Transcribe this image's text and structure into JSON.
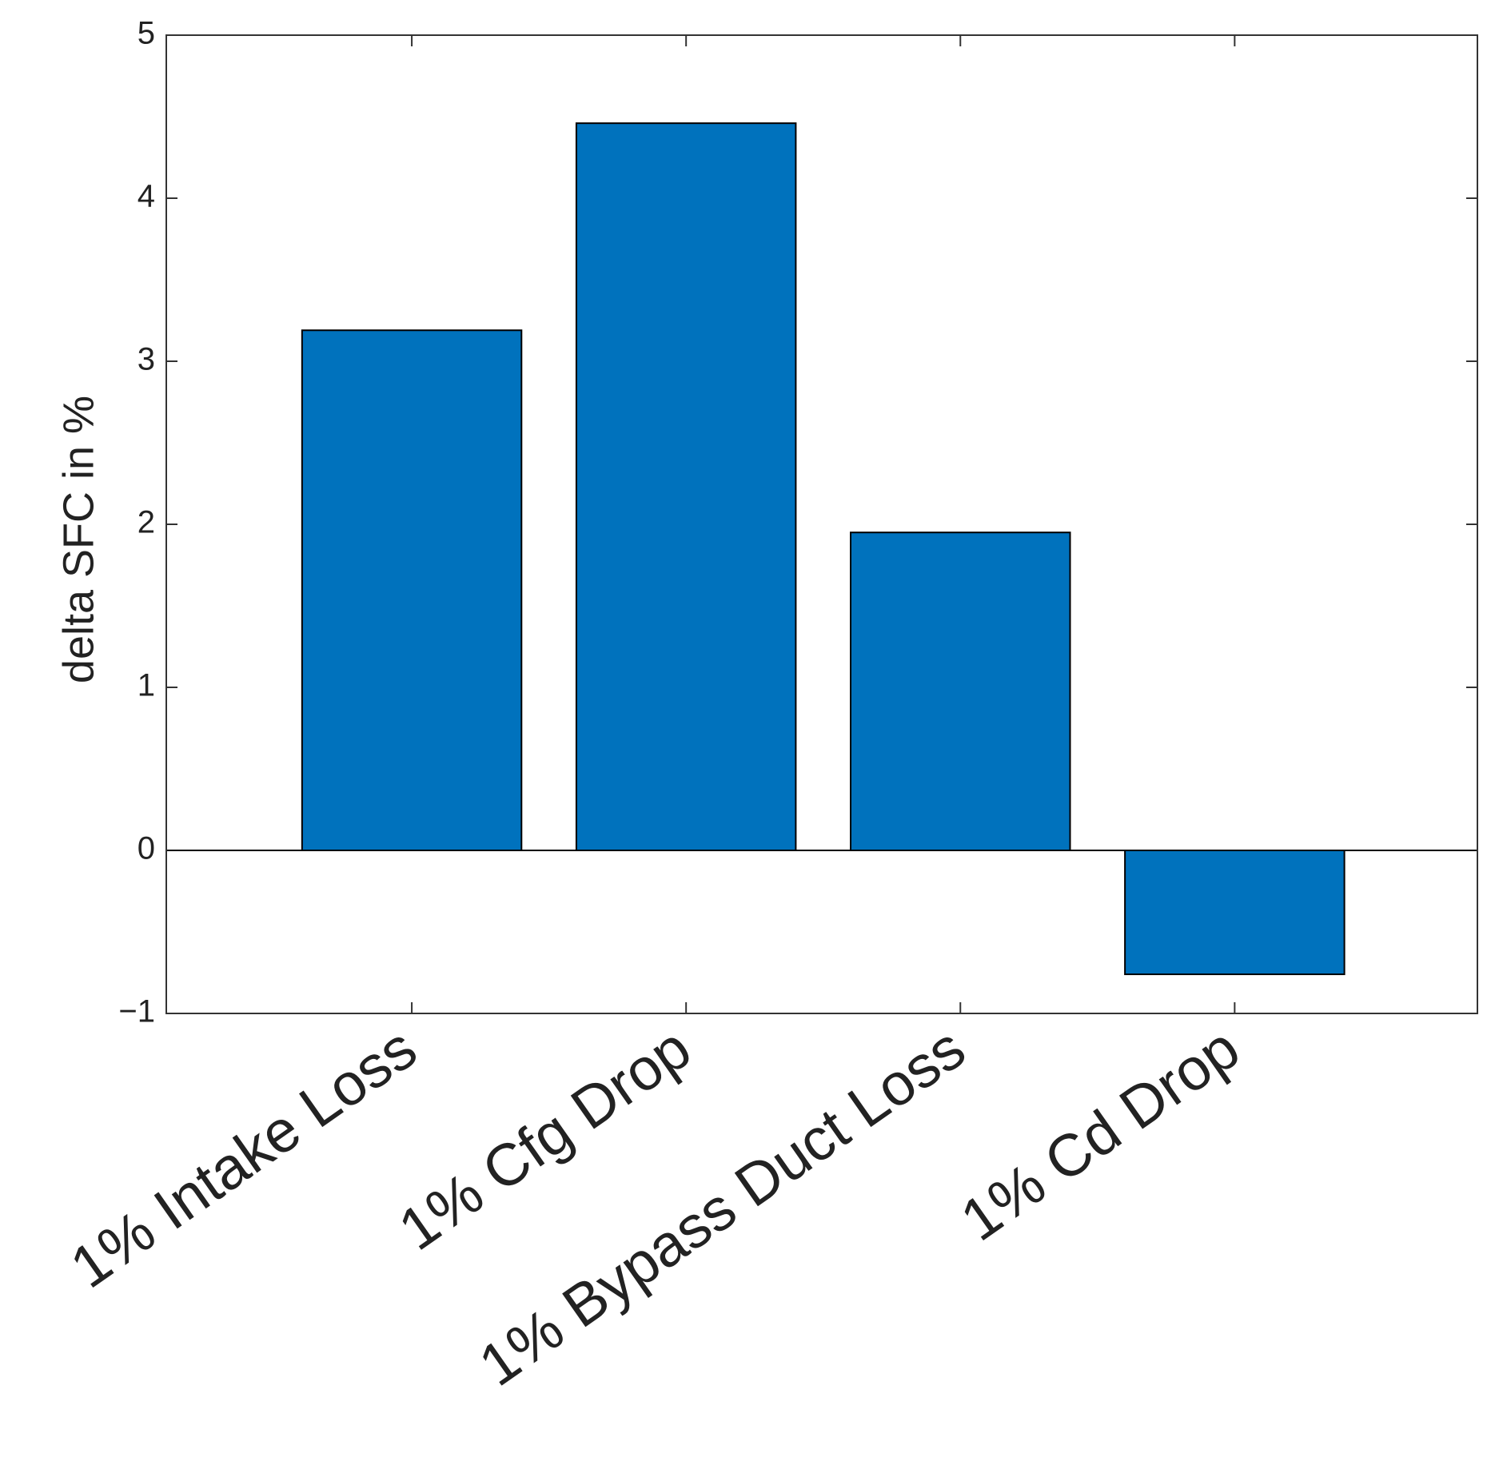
{
  "chart_data": {
    "type": "bar",
    "y_label": "delta SFC in %",
    "categories": [
      "1% Intake Loss",
      "1% Cfg Drop",
      "1% Bypass Duct Loss",
      "1% Cd Drop"
    ],
    "values": [
      3.19,
      4.46,
      1.95,
      -0.76
    ],
    "color": "#0072bd",
    "ylim": [
      -1,
      5
    ],
    "yticks": [
      {
        "value": -1,
        "label": "−1"
      },
      0,
      1,
      2,
      3,
      4,
      5
    ],
    "grid": false
  }
}
